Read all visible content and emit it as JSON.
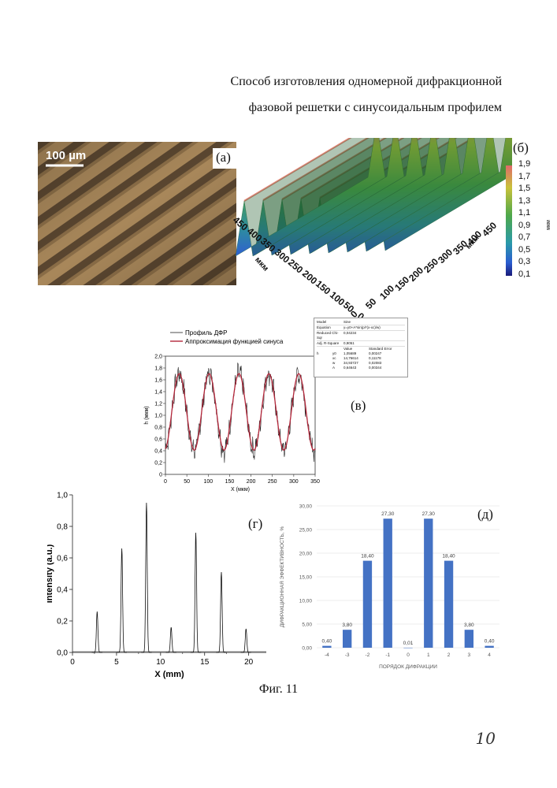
{
  "title": {
    "line1": "Способ изготовления одномерной дифракционной",
    "line2": "фазовой решетки с синусоидальным профилем"
  },
  "panels": {
    "a": {
      "label": "(a)",
      "scalebar": "100 µm"
    },
    "b": {
      "label": "(б)",
      "colorbar_ticks": [
        "1,9",
        "1,7",
        "1,5",
        "1,3",
        "1,1",
        "0,9",
        "0,7",
        "0,5",
        "0,3",
        "0,1"
      ],
      "colorbar_unit": "мкм",
      "axis_left_ticks": [
        "450",
        "400",
        "350",
        "300",
        "250",
        "200",
        "150",
        "100",
        "50",
        "0"
      ],
      "axis_left_label": "мкм",
      "axis_right_ticks": [
        "0",
        "50",
        "100",
        "150",
        "200",
        "250",
        "300",
        "350",
        "400",
        "450"
      ],
      "axis_right_label": "мкм"
    },
    "v": {
      "label": "(в)"
    },
    "g": {
      "label": "(г)"
    },
    "d": {
      "label": "(д)"
    }
  },
  "fit_table": {
    "rows": [
      [
        "Model",
        "Sine"
      ],
      [
        "Equation",
        "y=y0+A*sin(pi*(x-xc)/w)"
      ],
      [
        "Reduced Chi-Sqr",
        "0,04234"
      ],
      [
        "Adj. R-Square",
        "0,9051"
      ]
    ],
    "header": [
      "",
      "",
      "Value",
      "Standard Error"
    ],
    "params": [
      [
        "h",
        "y0",
        "1,05689",
        "0,00247"
      ],
      [
        "",
        "xc",
        "14,76614",
        "0,11178"
      ],
      [
        "",
        "w",
        "34,93727",
        "0,02083"
      ],
      [
        "",
        "A",
        "0,64643",
        "0,00344"
      ]
    ]
  },
  "chart_data": [
    {
      "type": "line",
      "panel": "в",
      "legend": [
        "Профиль ДФР",
        "Аппроксимация функцией синуса"
      ],
      "xlabel": "X (мкм)",
      "ylabel": "h (мкм)",
      "xlim": [
        0,
        350
      ],
      "ylim": [
        0,
        2.0
      ],
      "xticks": [
        "0",
        "50",
        "100",
        "150",
        "200",
        "250",
        "300",
        "350"
      ],
      "yticks": [
        "0",
        "0,2",
        "0,4",
        "0,6",
        "0,8",
        "1,0",
        "1,2",
        "1,4",
        "1,6",
        "1,8",
        "2,0"
      ],
      "fit": {
        "y0": 1.05689,
        "A": 0.64643,
        "xc": 14.76614,
        "w": 34.93727
      },
      "series_colors": [
        "#222222",
        "#b3263a"
      ]
    },
    {
      "type": "line",
      "panel": "г",
      "xlabel": "X (mm)",
      "ylabel": "Intensity (a.u.)",
      "xlim": [
        0,
        22
      ],
      "ylim": [
        0,
        1.0
      ],
      "xticks": [
        "0",
        "5",
        "10",
        "15",
        "20"
      ],
      "yticks": [
        "0,0",
        "0,2",
        "0,4",
        "0,6",
        "0,8",
        "1,0"
      ],
      "peaks": [
        {
          "x": 2.8,
          "y": 0.26
        },
        {
          "x": 5.6,
          "y": 0.66
        },
        {
          "x": 8.4,
          "y": 0.95
        },
        {
          "x": 11.2,
          "y": 0.16
        },
        {
          "x": 14.0,
          "y": 0.76
        },
        {
          "x": 16.9,
          "y": 0.51
        },
        {
          "x": 19.7,
          "y": 0.15
        }
      ]
    },
    {
      "type": "bar",
      "panel": "д",
      "categories": [
        "-4",
        "-3",
        "-2",
        "-1",
        "0",
        "1",
        "2",
        "3",
        "4"
      ],
      "values": [
        0.4,
        3.8,
        18.4,
        27.3,
        0.01,
        27.3,
        18.4,
        3.8,
        0.4
      ],
      "value_labels": [
        "0,40",
        "3,80",
        "18,40",
        "27,30",
        "0,01",
        "27,30",
        "18,40",
        "3,80",
        "0,40"
      ],
      "xlabel": "ПОРЯДОК ДИФРАКЦИИ",
      "ylabel": "ДИФРАКЦИОННАЯ ЭФФЕКТИВНОСТЬ, %",
      "ylim": [
        0,
        30
      ],
      "yticks": [
        "0,00",
        "5,00",
        "10,00",
        "15,00",
        "20,00",
        "25,00",
        "30,00"
      ],
      "bar_color": "#4472c4",
      "grid": true
    }
  ],
  "caption": "Фиг. 11",
  "page_number": "10"
}
